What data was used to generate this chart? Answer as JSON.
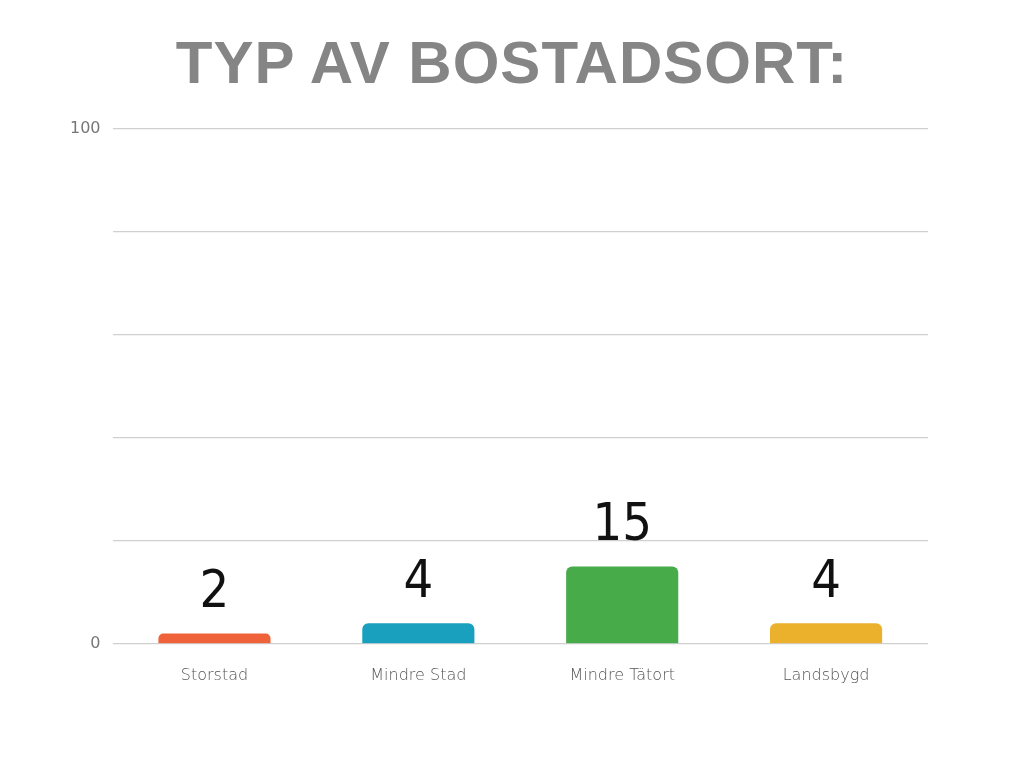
{
  "chart_data": {
    "type": "bar",
    "title": "TYP AV BOSTADSORT:",
    "categories": [
      "Storstad",
      "Mindre Stad",
      "Mindre Tätort",
      "Landsbygd"
    ],
    "values": [
      2,
      4,
      15,
      4
    ],
    "colors": [
      "#f0623a",
      "#1aa0bf",
      "#47ab4a",
      "#ebb12c"
    ],
    "ylim": [
      0,
      100
    ],
    "yticks": [
      0,
      {
        "value": 20,
        "label": null
      },
      {
        "value": 40,
        "label": null
      },
      {
        "value": 60,
        "label": null
      },
      {
        "value": 80,
        "label": null
      },
      100
    ],
    "grid": "y",
    "data_labels": true,
    "legend": false
  }
}
